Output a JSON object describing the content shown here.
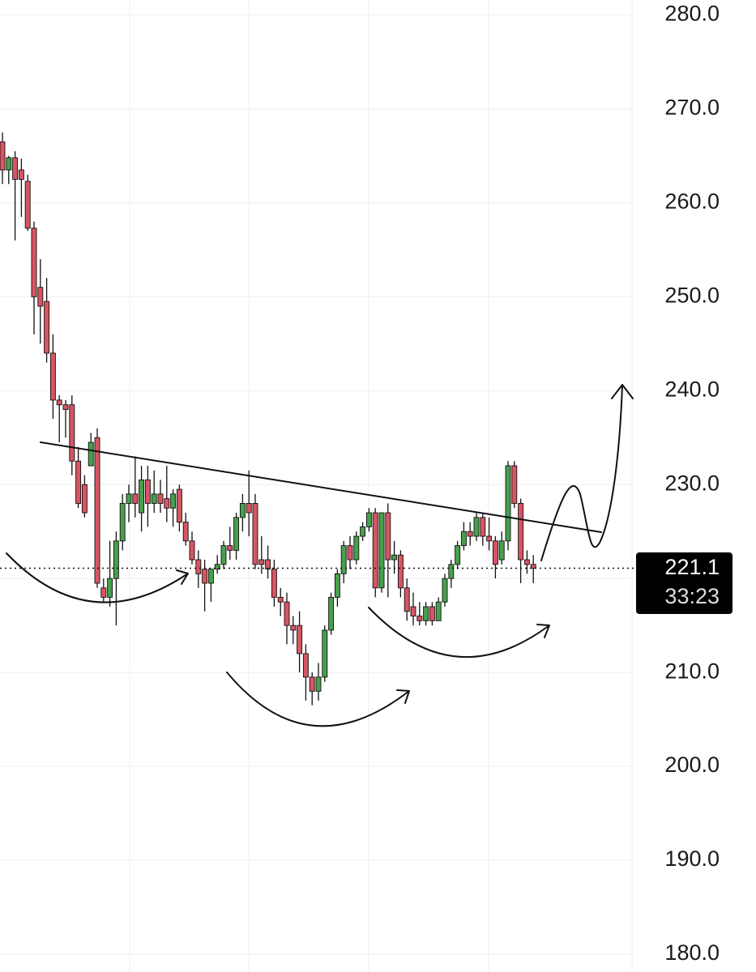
{
  "chart_data": {
    "type": "candlestick",
    "open": [
      266.5,
      263.5,
      264.8,
      263.5,
      262.3,
      257.3,
      251,
      249.5,
      244,
      239,
      238.5,
      238.5,
      232.5,
      230,
      232,
      235,
      219,
      218,
      220,
      224,
      228,
      229,
      227,
      230.5,
      228,
      229,
      228.5,
      227.5,
      229.5,
      226,
      224,
      222,
      221,
      219.5,
      221,
      221.5,
      223.5,
      223,
      226.5,
      228,
      228,
      222,
      222,
      221,
      218,
      217.5,
      215,
      215,
      212,
      209.5,
      208,
      209.5,
      214.5,
      218,
      220.5,
      223.5,
      222,
      224.5,
      225.5,
      227,
      219,
      227,
      222,
      222.5,
      219,
      217,
      216,
      215.5,
      217,
      215.5,
      217.5,
      220,
      221.5,
      223.5,
      225,
      224.5,
      226.5,
      224.5,
      224,
      222,
      224,
      232,
      228,
      222,
      221.5
    ],
    "high": [
      267.5,
      265,
      265.5,
      264.7,
      263,
      258,
      254,
      252,
      246,
      239.5,
      239,
      239.5,
      234,
      231,
      235.5,
      236,
      220,
      224,
      225,
      229,
      230,
      233,
      232,
      232,
      231.5,
      230.5,
      232,
      229.5,
      230,
      227,
      225,
      223,
      222,
      221,
      222.5,
      224,
      225.5,
      227,
      229,
      231.5,
      229,
      224.5,
      223.5,
      222,
      219,
      218.5,
      216,
      216.5,
      213,
      210,
      211,
      215,
      218.5,
      221,
      224,
      224.5,
      225,
      226,
      227.5,
      227.5,
      227,
      228,
      224,
      223,
      220,
      218.5,
      217.5,
      217.5,
      217.5,
      218,
      220.5,
      222,
      224,
      226,
      226,
      227,
      227,
      226.5,
      224.5,
      225,
      232.5,
      232.5,
      228.5,
      223,
      222.5
    ],
    "low": [
      262,
      262,
      256,
      258.5,
      257,
      246,
      245,
      243,
      237,
      234.5,
      235,
      231,
      227.5,
      226.5,
      232,
      219,
      217.5,
      217,
      215,
      223,
      226,
      226.5,
      225,
      225.5,
      227,
      227,
      226,
      225.5,
      225,
      223.5,
      221.5,
      219,
      216.5,
      217.5,
      220.5,
      221,
      222,
      222,
      225,
      224.5,
      221,
      220.5,
      220,
      217,
      216,
      213,
      213,
      210,
      207,
      206.5,
      207,
      209,
      214,
      217,
      219.5,
      221,
      221.5,
      224,
      225,
      218,
      218.5,
      218,
      220.5,
      218,
      215.5,
      215,
      215,
      215,
      215,
      215.5,
      217,
      219,
      221,
      223,
      223.5,
      224,
      223.5,
      223,
      220,
      221.5,
      223,
      227.5,
      219.5,
      220.5,
      219.5
    ],
    "close": [
      263.5,
      264.8,
      262.5,
      262.5,
      257.3,
      250,
      249,
      244,
      239,
      238.5,
      238,
      232.5,
      228,
      227,
      234.5,
      219.5,
      218,
      220,
      224,
      228,
      229,
      228,
      230.5,
      228,
      229,
      228,
      227.5,
      229,
      226,
      224,
      222,
      220.5,
      219.5,
      221,
      221.5,
      223.5,
      223,
      226.5,
      228,
      227,
      221.5,
      221.5,
      221,
      218,
      217.5,
      215,
      214.5,
      212,
      209.5,
      208,
      209.5,
      214.5,
      218,
      220.5,
      223.5,
      222,
      224.5,
      225.5,
      227,
      219,
      227,
      222,
      222.5,
      219,
      216.5,
      216,
      215.5,
      217,
      215.5,
      217.5,
      220,
      221.5,
      223.5,
      225,
      224.5,
      226.5,
      224.5,
      224,
      221.5,
      224,
      232,
      228,
      222,
      221.5,
      221.1
    ],
    "up_color": "#47a04c",
    "down_color": "#d85563",
    "ylim": [
      178.1,
      281.6
    ],
    "yticks": [
      {
        "value": 180,
        "label": "180.0"
      },
      {
        "value": 190,
        "label": "190.0"
      },
      {
        "value": 200,
        "label": "200.0"
      },
      {
        "value": 210,
        "label": "210.0"
      },
      {
        "value": 220,
        "label": "220.0"
      },
      {
        "value": 230,
        "label": "230.0"
      },
      {
        "value": 240,
        "label": "240.0"
      },
      {
        "value": 250,
        "label": "250.0"
      },
      {
        "value": 260,
        "label": "260.0"
      },
      {
        "value": 270,
        "label": "270.0"
      },
      {
        "value": 280,
        "label": "280.0"
      }
    ],
    "grid": true,
    "last_price": 221.1,
    "countdown": "33:23"
  }
}
